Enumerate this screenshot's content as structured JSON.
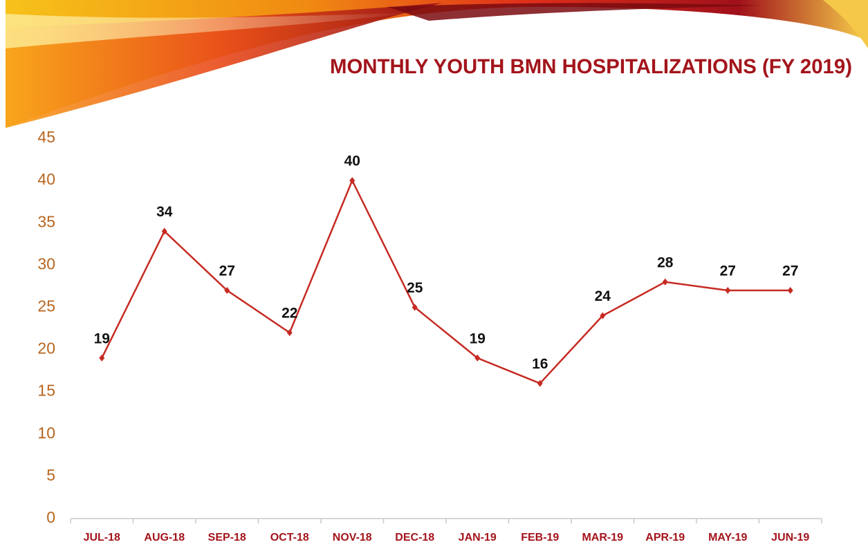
{
  "chart_data": {
    "type": "line",
    "title": "MONTHLY YOUTH BMN HOSPITALIZATIONS (FY 2019)",
    "categories": [
      "JUL-18",
      "AUG-18",
      "SEP-18",
      "OCT-18",
      "NOV-18",
      "DEC-18",
      "JAN-19",
      "FEB-19",
      "MAR-19",
      "APR-19",
      "MAY-19",
      "JUN-19"
    ],
    "values": [
      19,
      34,
      27,
      22,
      40,
      25,
      19,
      16,
      24,
      28,
      27,
      27
    ],
    "color": "#c62a22",
    "ylim": [
      0,
      45
    ],
    "yticks": [
      0,
      5,
      10,
      15,
      20,
      25,
      30,
      35,
      40,
      45
    ],
    "grid": false
  }
}
